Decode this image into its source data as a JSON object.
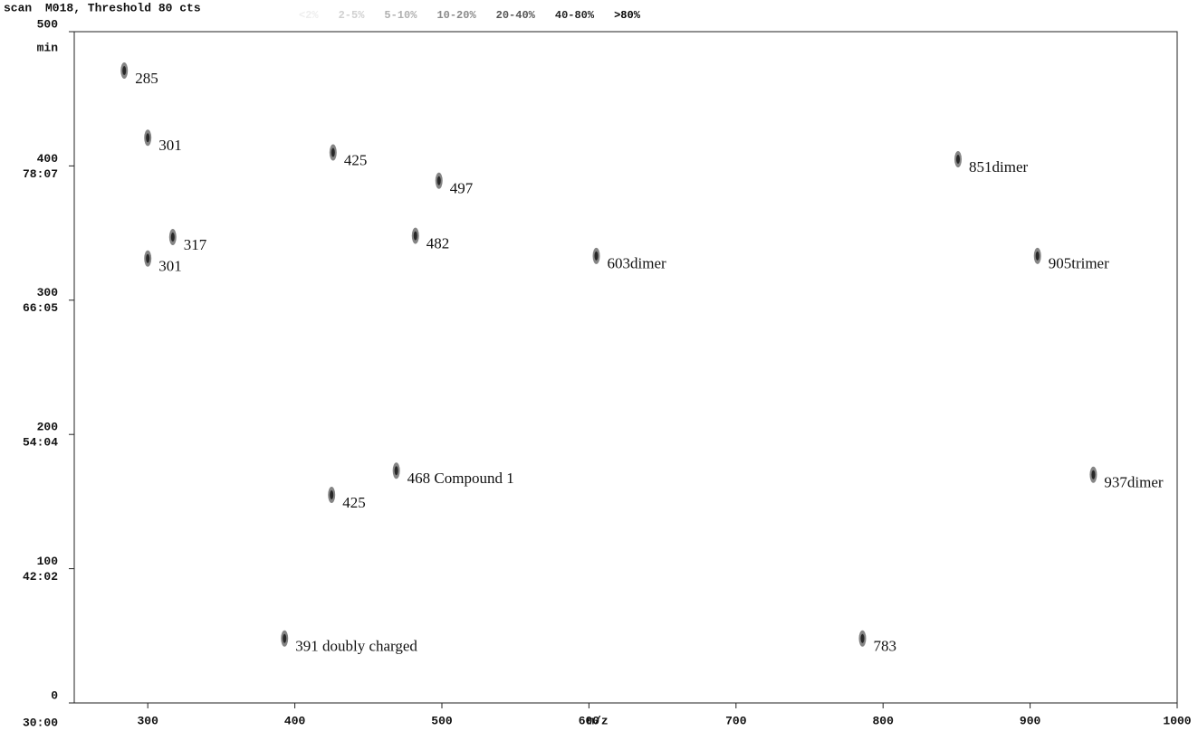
{
  "chart_data": {
    "type": "scatter",
    "title": "M018, Threshold 80 cts",
    "ylabel": "scan",
    "y2label": "min",
    "xlabel": "m/z",
    "xlim": [
      250,
      1000
    ],
    "ylim": [
      0,
      500
    ],
    "xticks": [
      300,
      400,
      500,
      600,
      700,
      800,
      900,
      1000
    ],
    "yticks": [
      0,
      100,
      200,
      300,
      400,
      500
    ],
    "time_ticks": [
      {
        "value": 0,
        "label": "30:00"
      },
      {
        "value": 100,
        "label": "42:02"
      },
      {
        "value": 200,
        "label": "54:04"
      },
      {
        "value": 300,
        "label": "66:05"
      },
      {
        "value": 400,
        "label": "78:07"
      }
    ],
    "legend": [
      {
        "label": "<2%",
        "color": "#eeeeee"
      },
      {
        "label": "2-5%",
        "color": "#d0d0d0"
      },
      {
        "label": "5-10%",
        "color": "#b0b0b0"
      },
      {
        "label": "10-20%",
        "color": "#8a8a8a"
      },
      {
        "label": "20-40%",
        "color": "#555555"
      },
      {
        "label": "40-80%",
        "color": "#222222"
      },
      {
        "label": ">80%",
        "color": "#000000"
      }
    ],
    "series": [
      {
        "color": "#333333",
        "x": [
          284,
          300,
          426,
          498,
          317,
          482,
          300,
          605,
          851,
          905,
          943,
          469,
          425,
          393,
          786
        ],
        "values": [
          471,
          421,
          410,
          389,
          347,
          348,
          331,
          333,
          405,
          333,
          170,
          173,
          155,
          48,
          48
        ],
        "labels": [
          "285",
          "301",
          "425",
          "497",
          "317",
          "482",
          "301",
          "603dimer",
          "851dimer",
          "905trimer",
          "937dimer",
          "468 Compound 1",
          "425",
          "391 doubly charged",
          "783"
        ]
      }
    ]
  }
}
